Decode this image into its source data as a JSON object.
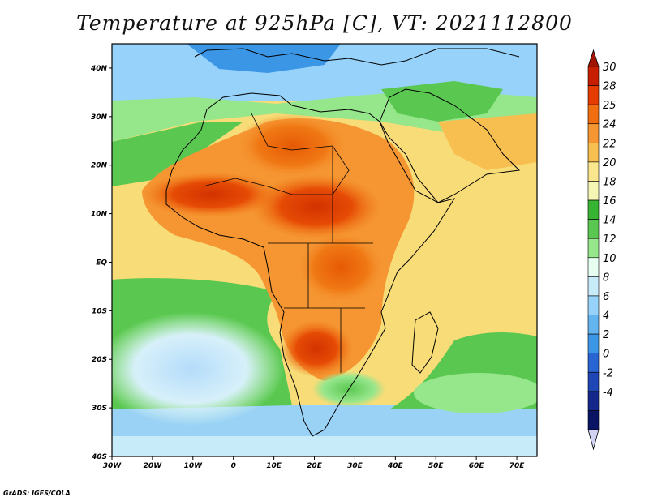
{
  "title": "Temperature at 925hPa [C], VT: 2021112800",
  "footer": "GrADS: IGES/COLA",
  "map": {
    "variable": "Temperature at 925hPa",
    "units": "C",
    "valid_time": "2021112800",
    "lon_range": [
      -30,
      75
    ],
    "lat_range": [
      -40,
      45
    ],
    "x_ticks": [
      {
        "value": -30,
        "label": "30W"
      },
      {
        "value": -20,
        "label": "20W"
      },
      {
        "value": -10,
        "label": "10W"
      },
      {
        "value": 0,
        "label": "0"
      },
      {
        "value": 10,
        "label": "10E"
      },
      {
        "value": 20,
        "label": "20E"
      },
      {
        "value": 30,
        "label": "30E"
      },
      {
        "value": 40,
        "label": "40E"
      },
      {
        "value": 50,
        "label": "50E"
      },
      {
        "value": 60,
        "label": "60E"
      },
      {
        "value": 70,
        "label": "70E"
      }
    ],
    "y_ticks": [
      {
        "value": 40,
        "label": "40N"
      },
      {
        "value": 30,
        "label": "30N"
      },
      {
        "value": 20,
        "label": "20N"
      },
      {
        "value": 10,
        "label": "10N"
      },
      {
        "value": 0,
        "label": "EQ"
      },
      {
        "value": -10,
        "label": "10S"
      },
      {
        "value": -20,
        "label": "20S"
      },
      {
        "value": -30,
        "label": "30S"
      },
      {
        "value": -40,
        "label": "40S"
      }
    ]
  },
  "colorbar": {
    "labels": [
      "30",
      "28",
      "25",
      "24",
      "22",
      "20",
      "18",
      "16",
      "14",
      "12",
      "10",
      "8",
      "6",
      "4",
      "2",
      "0",
      "-2",
      "-4"
    ],
    "colors": [
      "#c81e00",
      "#e63c00",
      "#f06e0f",
      "#f59632",
      "#f7be50",
      "#fae68c",
      "#f5f5b4",
      "#37b432",
      "#5ac850",
      "#96e68c",
      "#e6fff0",
      "#c8ebfa",
      "#96d2fa",
      "#64b4f0",
      "#3c96e6",
      "#2864d2",
      "#1e46b4",
      "#14288c",
      "#0a1464"
    ],
    "top_arrow_color": "#a01400",
    "bottom_arrow_color": "#d2d2f5"
  }
}
